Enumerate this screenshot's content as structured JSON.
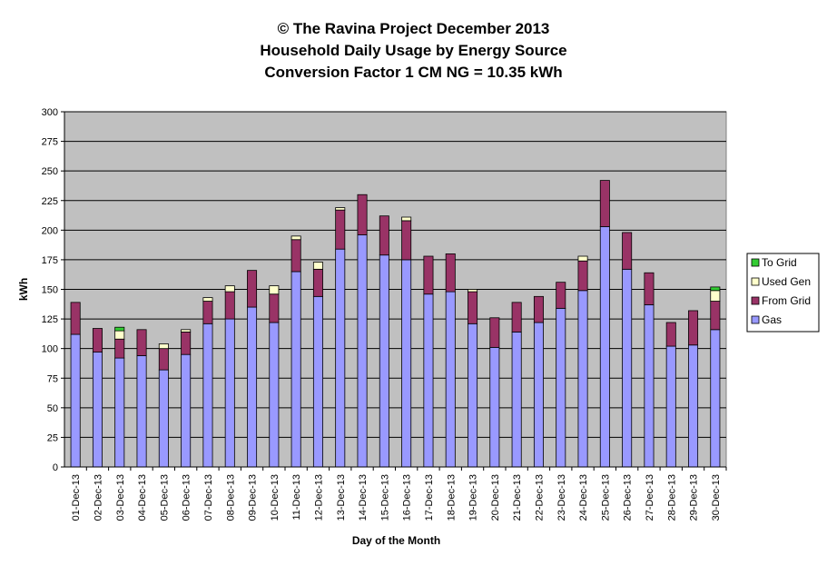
{
  "chart_data": {
    "type": "bar",
    "stacked": true,
    "title": [
      "© The Ravina Project December 2013",
      "Household Daily Usage by Energy Source",
      "Conversion Factor 1 CM NG = 10.35 kWh"
    ],
    "xlabel": "Day of the Month",
    "ylabel": "kWh",
    "ylim": [
      0,
      300
    ],
    "yticks": [
      0,
      25,
      50,
      75,
      100,
      125,
      150,
      175,
      200,
      225,
      250,
      275,
      300
    ],
    "grid": true,
    "legend_position": "right",
    "categories": [
      "01-Dec-13",
      "02-Dec-13",
      "03-Dec-13",
      "04-Dec-13",
      "05-Dec-13",
      "06-Dec-13",
      "07-Dec-13",
      "08-Dec-13",
      "09-Dec-13",
      "10-Dec-13",
      "11-Dec-13",
      "12-Dec-13",
      "13-Dec-13",
      "14-Dec-13",
      "15-Dec-13",
      "16-Dec-13",
      "17-Dec-13",
      "18-Dec-13",
      "19-Dec-13",
      "20-Dec-13",
      "21-Dec-13",
      "22-Dec-13",
      "23-Dec-13",
      "24-Dec-13",
      "25-Dec-13",
      "26-Dec-13",
      "27-Dec-13",
      "28-Dec-13",
      "29-Dec-13",
      "30-Dec-13"
    ],
    "series": [
      {
        "name": "Gas",
        "color": "#9999ff",
        "values": [
          112,
          97,
          92,
          94,
          82,
          95,
          121,
          125,
          135,
          122,
          165,
          144,
          184,
          196,
          179,
          175,
          146,
          148,
          121,
          101,
          114,
          122,
          134,
          149,
          203,
          167,
          137,
          102,
          103,
          116
        ]
      },
      {
        "name": "From Grid",
        "color": "#993366",
        "values": [
          27,
          20,
          16,
          22,
          18,
          19,
          19,
          23,
          31,
          24,
          27,
          23,
          33,
          34,
          33,
          33,
          32,
          32,
          27,
          25,
          25,
          22,
          22,
          25,
          39,
          31,
          27,
          20,
          29,
          24
        ]
      },
      {
        "name": "Used Gen",
        "color": "#ffffcc",
        "values": [
          0,
          0,
          7,
          0,
          4,
          2,
          3,
          5,
          0,
          7,
          3,
          6,
          2,
          0,
          0,
          3,
          0,
          0,
          2,
          0,
          0,
          0,
          0,
          4,
          0,
          0,
          0,
          0,
          0,
          9
        ]
      },
      {
        "name": "To Grid",
        "color": "#33cc33",
        "values": [
          0,
          0,
          3,
          0,
          0,
          0,
          0,
          0,
          0,
          0,
          0,
          0,
          0,
          0,
          0,
          0,
          0,
          0,
          0,
          0,
          0,
          0,
          0,
          0,
          0,
          0,
          0,
          0,
          0,
          3
        ]
      }
    ],
    "legend_order": [
      "To Grid",
      "Used Gen",
      "From Grid",
      "Gas"
    ],
    "plot_background": "#c0c0c0"
  }
}
